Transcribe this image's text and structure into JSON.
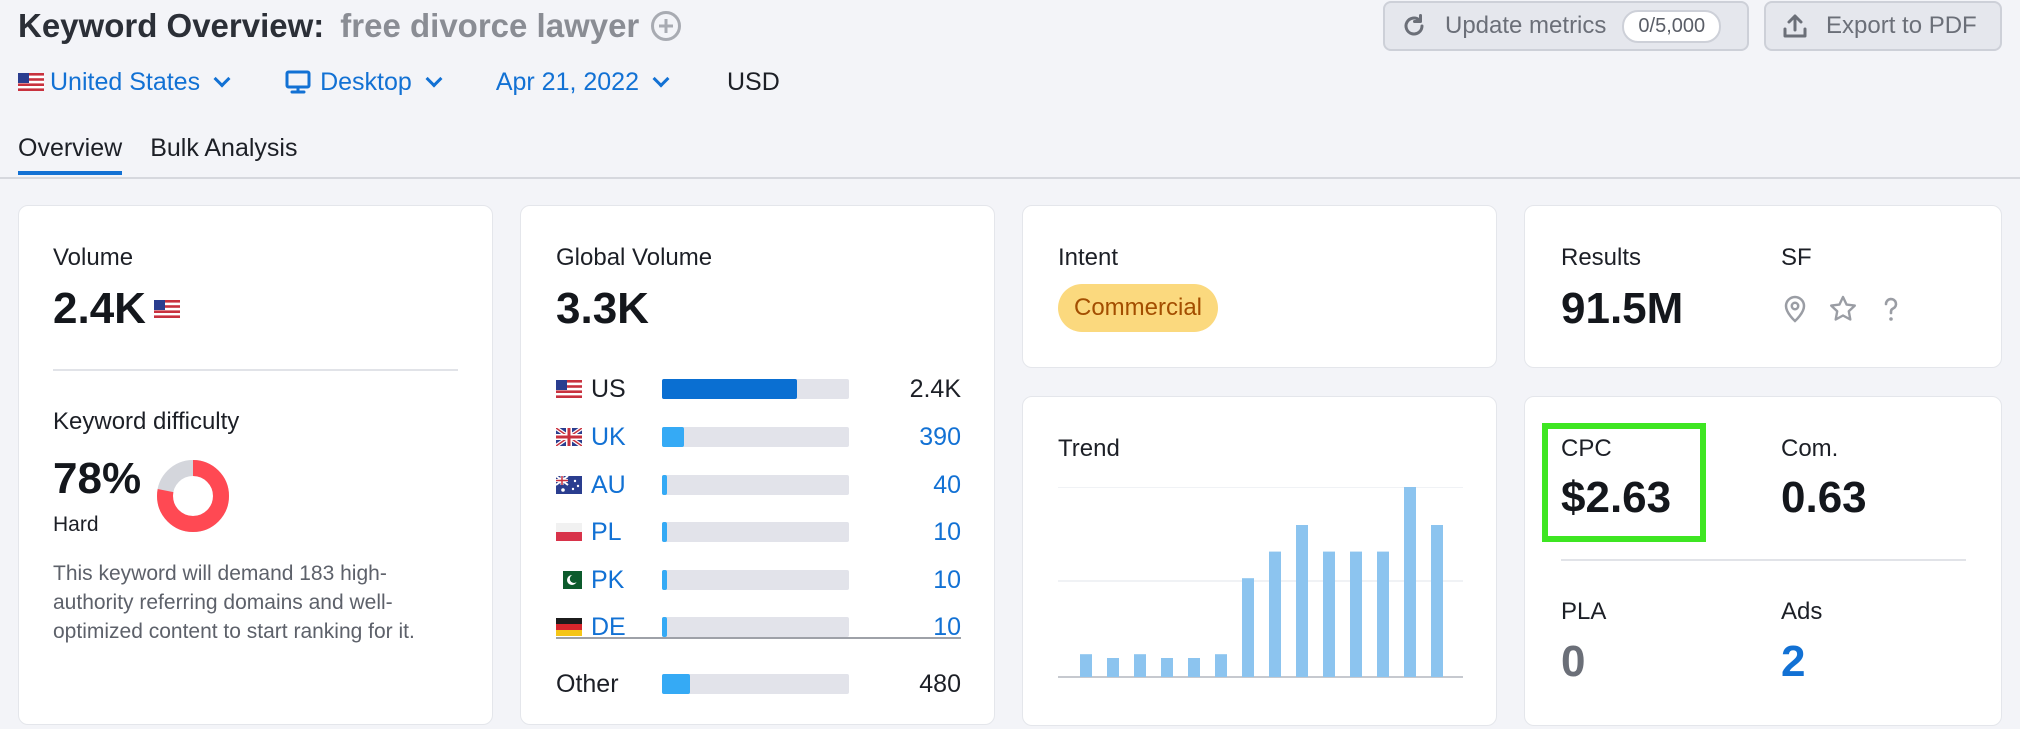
{
  "header": {
    "title": "Keyword Overview:",
    "keyword": "free divorce lawyer"
  },
  "actions": {
    "update_label": "Update metrics",
    "update_quota": "0/5,000",
    "export_label": "Export to PDF"
  },
  "filters": {
    "country": "United States",
    "device": "Desktop",
    "date": "Apr 21, 2022",
    "currency": "USD"
  },
  "tabs": [
    {
      "label": "Overview",
      "active": true
    },
    {
      "label": "Bulk Analysis",
      "active": false
    }
  ],
  "volume": {
    "label": "Volume",
    "value": "2.4K",
    "kd_label": "Keyword difficulty",
    "kd_value": "78%",
    "kd_percent": 78,
    "kd_level": "Hard",
    "kd_description": "This keyword will demand 183 high-authority referring domains and well-optimized content to start ranking for it."
  },
  "global_volume": {
    "label": "Global Volume",
    "value": "3.3K",
    "rows": [
      {
        "code": "US",
        "value": "2.4K",
        "share": 0.72,
        "link": false,
        "bar_color": "#0a6fd2"
      },
      {
        "code": "UK",
        "value": "390",
        "share": 0.12,
        "link": true,
        "bar_color": "#35aaf5"
      },
      {
        "code": "AU",
        "value": "40",
        "share": 0.025,
        "link": true,
        "bar_color": "#35aaf5"
      },
      {
        "code": "PL",
        "value": "10",
        "share": 0.025,
        "link": true,
        "bar_color": "#35aaf5"
      },
      {
        "code": "PK",
        "value": "10",
        "share": 0.025,
        "link": true,
        "bar_color": "#35aaf5"
      },
      {
        "code": "DE",
        "value": "10",
        "share": 0.025,
        "link": true,
        "bar_color": "#35aaf5"
      }
    ],
    "other": {
      "label": "Other",
      "value": "480",
      "share": 0.15
    }
  },
  "intent": {
    "label": "Intent",
    "value": "Commercial"
  },
  "trend": {
    "label": "Trend",
    "values": [
      12,
      10,
      12,
      10,
      10,
      12,
      52,
      66,
      80,
      66,
      66,
      66,
      100,
      80
    ]
  },
  "results": {
    "label": "Results",
    "value": "91.5M",
    "sf_label": "SF",
    "sf_icons": [
      "location-pin-icon",
      "star-icon",
      "question-icon"
    ]
  },
  "metrics": {
    "cpc_label": "CPC",
    "cpc_value": "$2.63",
    "com_label": "Com.",
    "com_value": "0.63",
    "pla_label": "PLA",
    "pla_value": "0",
    "ads_label": "Ads",
    "ads_value": "2"
  },
  "colors": {
    "accent": "#1271d4",
    "highlight": "#3ee622",
    "kd_ring": "#ff4953",
    "intent_bg": "#fbd97e",
    "trend_bar": "#8cc4ef"
  }
}
